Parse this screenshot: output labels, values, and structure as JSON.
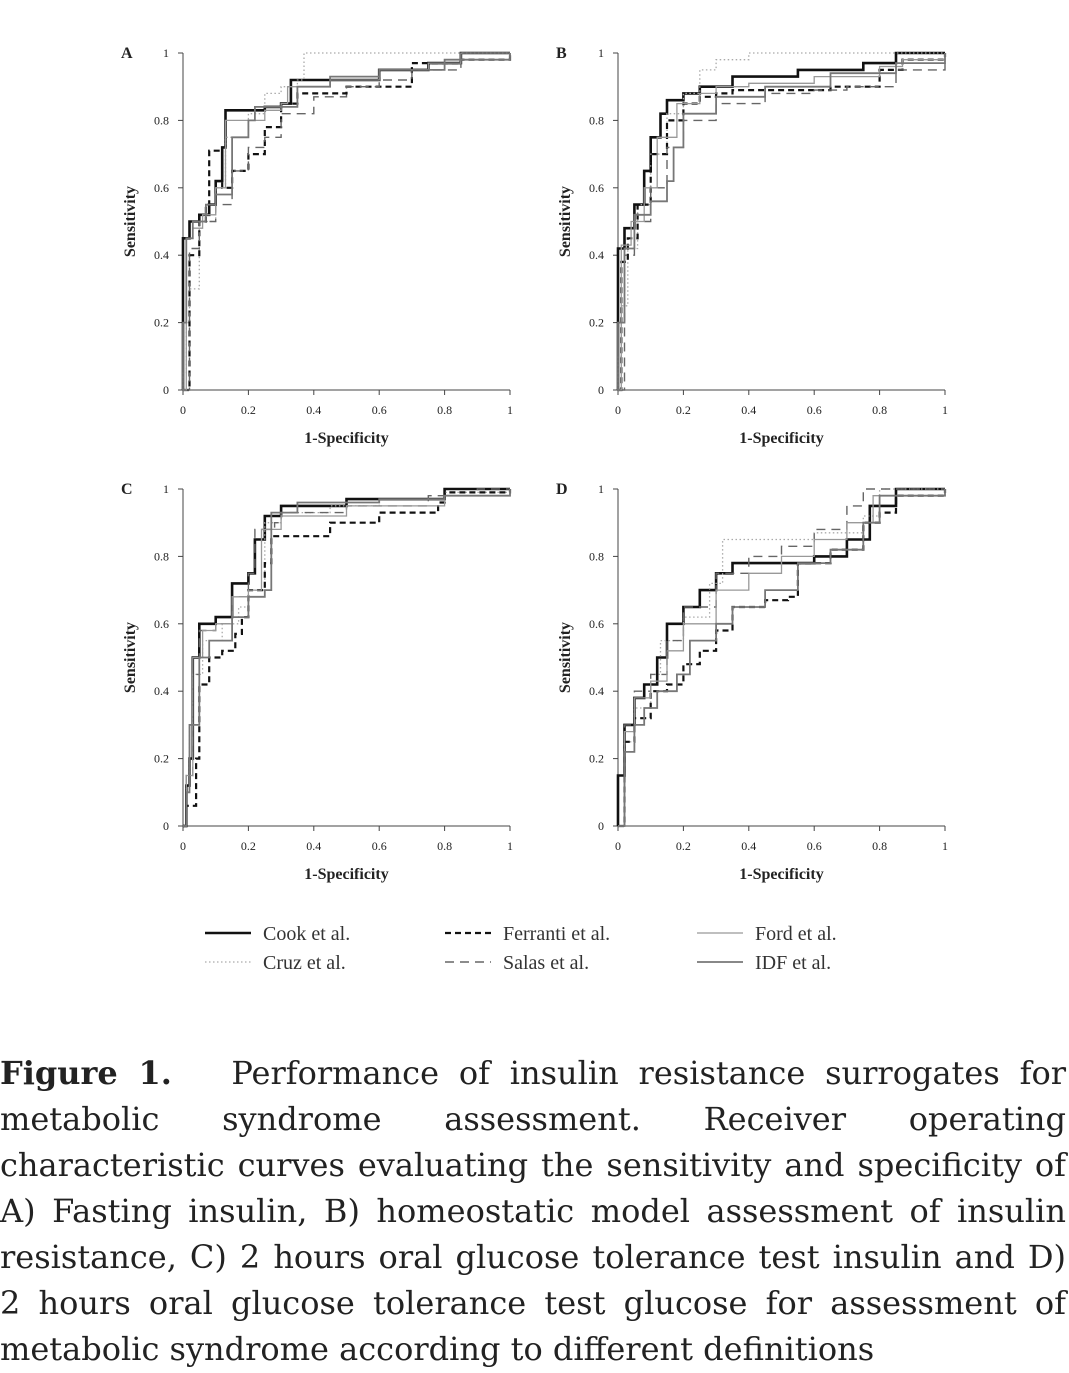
{
  "chart_data": [
    {
      "type": "line",
      "panel_label": "A",
      "xlabel": "1-Specificity",
      "ylabel": "Sensitivity",
      "xlim": [
        0,
        1
      ],
      "ylim": [
        0,
        1
      ],
      "xticks": [
        "0",
        "0.2",
        "0.4",
        "0.6",
        "0.8",
        "1"
      ],
      "yticks": [
        "0",
        "0.2",
        "0.4",
        "0.6",
        "0.8",
        "1"
      ],
      "grid": false,
      "series": [
        {
          "name": "Cook et al.",
          "x": [
            0,
            0,
            0.02,
            0.05,
            0.08,
            0.1,
            0.12,
            0.13,
            0.2,
            0.25,
            0.3,
            0.33,
            0.4,
            0.6,
            0.75,
            0.85,
            1
          ],
          "y": [
            0,
            0.45,
            0.5,
            0.52,
            0.55,
            0.62,
            0.72,
            0.83,
            0.83,
            0.84,
            0.85,
            0.92,
            0.92,
            0.95,
            0.97,
            1,
            1
          ]
        },
        {
          "name": "Cruz et al.",
          "x": [
            0,
            0,
            0.01,
            0.02,
            0.05,
            0.1,
            0.13,
            0.2,
            0.25,
            0.3,
            0.35,
            0.37,
            0.5,
            0.7,
            0.85,
            1
          ],
          "y": [
            0,
            0.05,
            0.2,
            0.3,
            0.5,
            0.6,
            0.75,
            0.82,
            0.88,
            0.9,
            0.92,
            1,
            1,
            1,
            1,
            1
          ]
        },
        {
          "name": "Ferranti et al.",
          "x": [
            0,
            0.02,
            0.05,
            0.07,
            0.08,
            0.1,
            0.12,
            0.15,
            0.2,
            0.25,
            0.3,
            0.35,
            0.5,
            0.7,
            0.85,
            1
          ],
          "y": [
            0,
            0.4,
            0.5,
            0.55,
            0.71,
            0.71,
            0.6,
            0.65,
            0.7,
            0.78,
            0.85,
            0.88,
            0.9,
            0.97,
            0.98,
            1
          ]
        },
        {
          "name": "Salas et al.",
          "x": [
            0,
            0.02,
            0.05,
            0.1,
            0.15,
            0.2,
            0.25,
            0.3,
            0.4,
            0.5,
            0.6,
            0.7,
            0.85,
            1
          ],
          "y": [
            0,
            0.42,
            0.5,
            0.55,
            0.65,
            0.72,
            0.75,
            0.82,
            0.87,
            0.9,
            0.92,
            0.95,
            0.98,
            1
          ]
        },
        {
          "name": "Ford et al.",
          "x": [
            0,
            0.01,
            0.03,
            0.06,
            0.1,
            0.13,
            0.2,
            0.25,
            0.3,
            0.32,
            0.45,
            0.6,
            0.75,
            0.85,
            1
          ],
          "y": [
            0,
            0.45,
            0.48,
            0.52,
            0.6,
            0.8,
            0.8,
            0.83,
            0.85,
            0.9,
            0.92,
            0.95,
            0.97,
            1,
            1
          ]
        },
        {
          "name": "IDF et al.",
          "x": [
            0,
            0,
            0.01,
            0.03,
            0.07,
            0.1,
            0.15,
            0.2,
            0.22,
            0.3,
            0.35,
            0.45,
            0.6,
            0.8,
            1
          ],
          "y": [
            0,
            0.2,
            0.45,
            0.5,
            0.55,
            0.58,
            0.75,
            0.8,
            0.84,
            0.84,
            0.9,
            0.93,
            0.95,
            0.98,
            1
          ]
        }
      ]
    },
    {
      "type": "line",
      "panel_label": "B",
      "xlabel": "1-Specificity",
      "ylabel": "Sensitivity",
      "xlim": [
        0,
        1
      ],
      "ylim": [
        0,
        1
      ],
      "xticks": [
        "0",
        "0.2",
        "0.4",
        "0.6",
        "0.8",
        "1"
      ],
      "yticks": [
        "0",
        "0.2",
        "0.4",
        "0.6",
        "0.8",
        "1"
      ],
      "grid": false,
      "series": [
        {
          "name": "Cook et al.",
          "x": [
            0,
            0,
            0.02,
            0.05,
            0.08,
            0.1,
            0.13,
            0.15,
            0.2,
            0.25,
            0.35,
            0.55,
            0.75,
            0.85,
            1
          ],
          "y": [
            0,
            0.42,
            0.48,
            0.55,
            0.65,
            0.75,
            0.82,
            0.86,
            0.88,
            0.9,
            0.93,
            0.95,
            0.97,
            1,
            1
          ]
        },
        {
          "name": "Cruz et al.",
          "x": [
            0,
            0,
            0.01,
            0.03,
            0.06,
            0.1,
            0.15,
            0.2,
            0.25,
            0.3,
            0.4,
            0.6,
            0.8,
            1
          ],
          "y": [
            0,
            0.1,
            0.25,
            0.42,
            0.55,
            0.7,
            0.82,
            0.88,
            0.95,
            0.98,
            1,
            1,
            1,
            1
          ]
        },
        {
          "name": "Ferranti et al.",
          "x": [
            0,
            0.01,
            0.03,
            0.06,
            0.1,
            0.15,
            0.2,
            0.25,
            0.3,
            0.35,
            0.5,
            0.65,
            0.8,
            0.87,
            1
          ],
          "y": [
            0,
            0.38,
            0.45,
            0.55,
            0.7,
            0.8,
            0.85,
            0.87,
            0.88,
            0.89,
            0.89,
            0.9,
            0.95,
            0.98,
            1
          ]
        },
        {
          "name": "Salas et al.",
          "x": [
            0,
            0.02,
            0.05,
            0.1,
            0.15,
            0.2,
            0.3,
            0.45,
            0.6,
            0.7,
            0.77,
            0.85,
            1
          ],
          "y": [
            0,
            0.4,
            0.5,
            0.6,
            0.72,
            0.8,
            0.85,
            0.88,
            0.89,
            0.9,
            0.9,
            0.95,
            1
          ]
        },
        {
          "name": "Ford et al.",
          "x": [
            0,
            0.01,
            0.04,
            0.08,
            0.12,
            0.18,
            0.25,
            0.3,
            0.4,
            0.6,
            0.8,
            0.87,
            1
          ],
          "y": [
            0,
            0.43,
            0.5,
            0.6,
            0.75,
            0.85,
            0.88,
            0.9,
            0.91,
            0.93,
            0.96,
            0.98,
            1
          ]
        },
        {
          "name": "IDF et al.",
          "x": [
            0,
            0,
            0.02,
            0.05,
            0.1,
            0.15,
            0.17,
            0.2,
            0.3,
            0.45,
            0.65,
            0.85,
            1
          ],
          "y": [
            0,
            0.2,
            0.42,
            0.52,
            0.56,
            0.62,
            0.72,
            0.82,
            0.87,
            0.9,
            0.94,
            0.97,
            1
          ]
        }
      ]
    },
    {
      "type": "line",
      "panel_label": "C",
      "xlabel": "1-Specificity",
      "ylabel": "Sensitivity",
      "xlim": [
        0,
        1
      ],
      "ylim": [
        0,
        1
      ],
      "xticks": [
        "0",
        "0.2",
        "0.4",
        "0.6",
        "0.8",
        "1"
      ],
      "yticks": [
        "0",
        "0.2",
        "0.4",
        "0.6",
        "0.8",
        "1"
      ],
      "grid": false,
      "series": [
        {
          "name": "Cook et al.",
          "x": [
            0,
            0.01,
            0.02,
            0.03,
            0.05,
            0.1,
            0.15,
            0.2,
            0.22,
            0.25,
            0.3,
            0.5,
            0.8,
            1
          ],
          "y": [
            0,
            0.12,
            0.2,
            0.5,
            0.6,
            0.62,
            0.72,
            0.75,
            0.85,
            0.92,
            0.95,
            0.97,
            1,
            1
          ]
        },
        {
          "name": "Cruz et al.",
          "x": [
            0,
            0.01,
            0.02,
            0.03,
            0.06,
            0.12,
            0.17,
            0.2,
            0.25,
            0.3,
            0.45,
            0.6,
            0.8,
            1
          ],
          "y": [
            0,
            0.15,
            0.3,
            0.45,
            0.55,
            0.6,
            0.65,
            0.7,
            0.9,
            0.93,
            0.95,
            0.97,
            0.99,
            1
          ]
        },
        {
          "name": "Ferranti et al.",
          "x": [
            0,
            0.01,
            0.04,
            0.05,
            0.08,
            0.12,
            0.16,
            0.18,
            0.2,
            0.25,
            0.27,
            0.35,
            0.45,
            0.6,
            0.78,
            0.8,
            1
          ],
          "y": [
            0,
            0.06,
            0.2,
            0.42,
            0.5,
            0.52,
            0.57,
            0.62,
            0.7,
            0.78,
            0.86,
            0.86,
            0.9,
            0.93,
            0.96,
            0.99,
            1
          ]
        },
        {
          "name": "Salas et al.",
          "x": [
            0,
            0.01,
            0.03,
            0.05,
            0.1,
            0.15,
            0.2,
            0.22,
            0.28,
            0.3,
            0.5,
            0.75,
            0.9,
            1
          ],
          "y": [
            0,
            0.15,
            0.45,
            0.58,
            0.6,
            0.68,
            0.75,
            0.88,
            0.9,
            0.93,
            0.95,
            0.98,
            1,
            1
          ]
        },
        {
          "name": "Ford et al.",
          "x": [
            0,
            0.01,
            0.03,
            0.06,
            0.1,
            0.15,
            0.2,
            0.24,
            0.3,
            0.5,
            0.8,
            1
          ],
          "y": [
            0,
            0.15,
            0.5,
            0.58,
            0.6,
            0.68,
            0.7,
            0.88,
            0.92,
            0.95,
            0.98,
            1
          ]
        },
        {
          "name": "IDF et al.",
          "x": [
            0,
            0.01,
            0.02,
            0.05,
            0.08,
            0.15,
            0.2,
            0.25,
            0.27,
            0.35,
            0.6,
            0.8,
            1
          ],
          "y": [
            0,
            0.1,
            0.3,
            0.5,
            0.55,
            0.62,
            0.68,
            0.7,
            0.93,
            0.96,
            0.97,
            0.98,
            1
          ]
        }
      ]
    },
    {
      "type": "line",
      "panel_label": "D",
      "xlabel": "1-Specificity",
      "ylabel": "Sensitivity",
      "xlim": [
        0,
        1
      ],
      "ylim": [
        0,
        1
      ],
      "xticks": [
        "0",
        "0.2",
        "0.4",
        "0.6",
        "0.8",
        "1"
      ],
      "yticks": [
        "0",
        "0.2",
        "0.4",
        "0.6",
        "0.8",
        "1"
      ],
      "grid": false,
      "series": [
        {
          "name": "Cook et al.",
          "x": [
            0,
            0,
            0.02,
            0.05,
            0.08,
            0.12,
            0.15,
            0.2,
            0.25,
            0.3,
            0.35,
            0.5,
            0.6,
            0.7,
            0.77,
            0.85,
            1
          ],
          "y": [
            0,
            0.15,
            0.3,
            0.38,
            0.42,
            0.5,
            0.6,
            0.65,
            0.7,
            0.75,
            0.78,
            0.78,
            0.8,
            0.85,
            0.95,
            1,
            1
          ]
        },
        {
          "name": "Cruz et al.",
          "x": [
            0,
            0.02,
            0.05,
            0.1,
            0.13,
            0.2,
            0.28,
            0.32,
            0.45,
            0.6,
            0.75,
            0.8,
            1
          ],
          "y": [
            0,
            0.25,
            0.35,
            0.45,
            0.55,
            0.62,
            0.72,
            0.85,
            0.85,
            0.87,
            0.92,
            1,
            1
          ]
        },
        {
          "name": "Ferranti et al.",
          "x": [
            0,
            0.02,
            0.05,
            0.1,
            0.15,
            0.2,
            0.25,
            0.3,
            0.35,
            0.45,
            0.52,
            0.55,
            0.65,
            0.75,
            0.8,
            0.85,
            1
          ],
          "y": [
            0,
            0.25,
            0.32,
            0.4,
            0.42,
            0.48,
            0.52,
            0.58,
            0.65,
            0.67,
            0.68,
            0.78,
            0.82,
            0.9,
            0.93,
            0.98,
            1
          ]
        },
        {
          "name": "Salas et al.",
          "x": [
            0,
            0.02,
            0.05,
            0.1,
            0.15,
            0.2,
            0.3,
            0.4,
            0.5,
            0.6,
            0.7,
            0.75,
            1
          ],
          "y": [
            0,
            0.3,
            0.4,
            0.45,
            0.55,
            0.65,
            0.75,
            0.8,
            0.83,
            0.88,
            0.95,
            1,
            1
          ]
        },
        {
          "name": "Ford et al.",
          "x": [
            0,
            0.02,
            0.05,
            0.1,
            0.15,
            0.2,
            0.3,
            0.4,
            0.5,
            0.6,
            0.7,
            0.78,
            1
          ],
          "y": [
            0,
            0.28,
            0.38,
            0.43,
            0.52,
            0.6,
            0.7,
            0.75,
            0.8,
            0.85,
            0.9,
            0.98,
            1
          ]
        },
        {
          "name": "IDF et al.",
          "x": [
            0,
            0.02,
            0.05,
            0.08,
            0.12,
            0.18,
            0.22,
            0.3,
            0.35,
            0.45,
            0.55,
            0.65,
            0.75,
            0.8,
            1
          ],
          "y": [
            0,
            0.22,
            0.3,
            0.35,
            0.4,
            0.45,
            0.55,
            0.6,
            0.65,
            0.7,
            0.78,
            0.82,
            0.9,
            0.98,
            1
          ]
        }
      ]
    }
  ],
  "legend": {
    "items": [
      {
        "label": "Cook et al.",
        "color": "#111111",
        "dash": "solid",
        "width": "thick"
      },
      {
        "label": "Ferranti et al.",
        "color": "#111111",
        "dash": "dashed",
        "width": "thick"
      },
      {
        "label": "Ford et al.",
        "color": "#999999",
        "dash": "solid",
        "width": "thin"
      },
      {
        "label": "Cruz et al.",
        "color": "#aaaaaa",
        "dash": "dotted",
        "width": "thin"
      },
      {
        "label": "Salas et al.",
        "color": "#666666",
        "dash": "long-dashed",
        "width": "thin"
      },
      {
        "label": "IDF et al.",
        "color": "#777777",
        "dash": "solid",
        "width": "medium"
      }
    ]
  },
  "caption": {
    "label": "Figure 1.",
    "text": "Performance of insulin resistance surrogates for metabolic syndrome assessment. Receiver operating characteristic curves evaluating the sensitivity and specificity of A) Fasting insulin, B) homeostatic model assessment of insulin resistance, C) 2 hours oral glucose tolerance test insulin and D) 2 hours oral glucose tolerance test glucose for assessment of metabolic syndrome according to different definitions"
  }
}
